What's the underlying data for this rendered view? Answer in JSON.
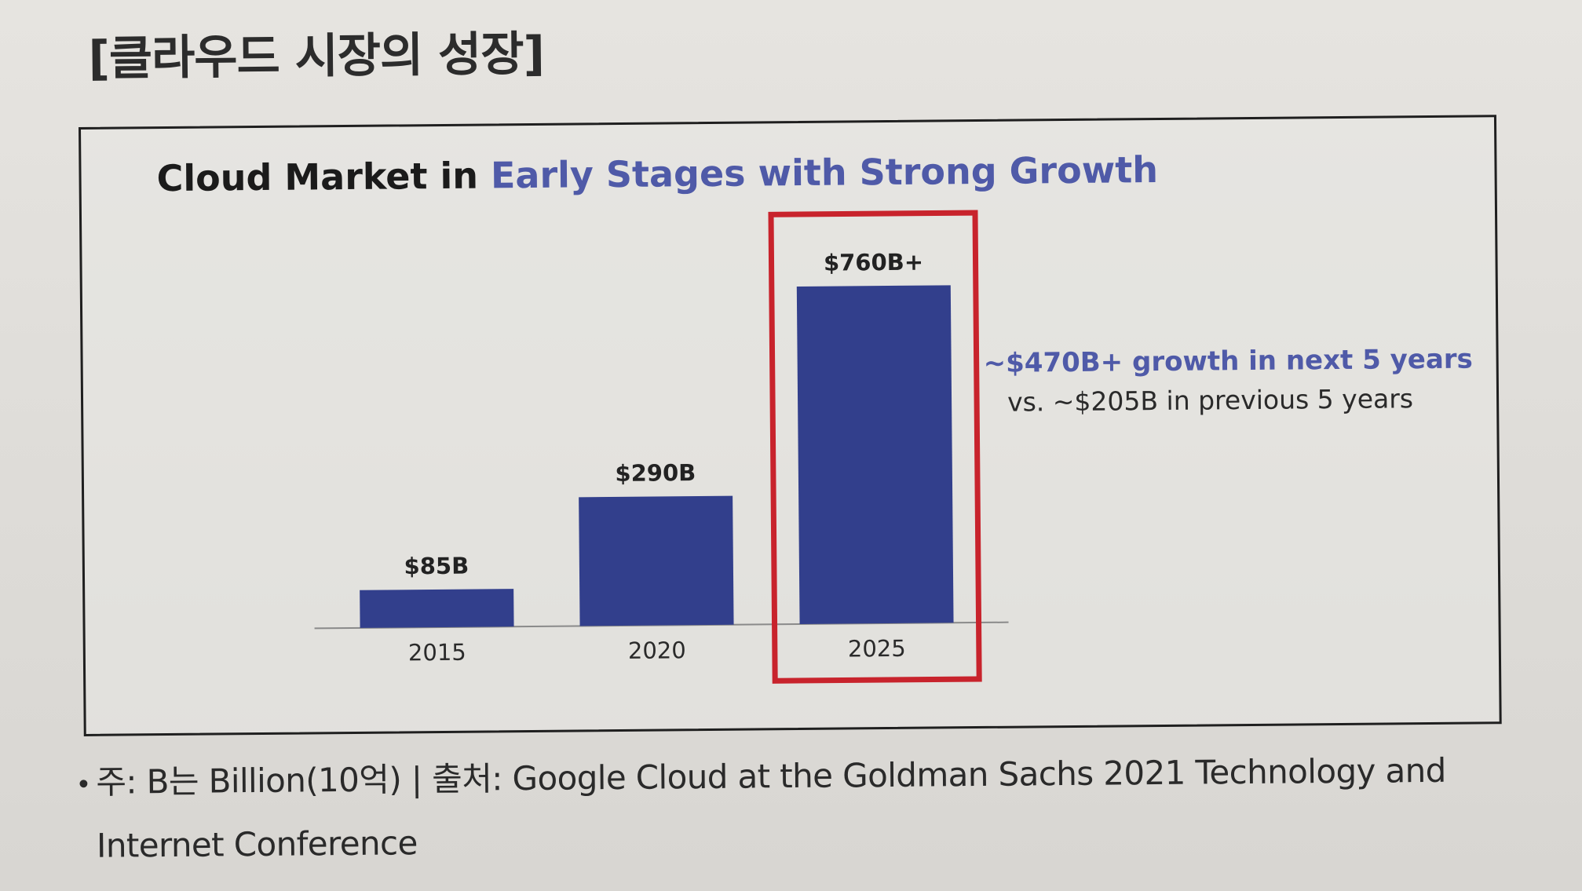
{
  "section_heading": "[클라우드 시장의 성장]",
  "chart_data": {
    "type": "bar",
    "title_part1": "Cloud Market in ",
    "title_part2": "Early Stages with Strong Growth",
    "categories": [
      "2015",
      "2020",
      "2025"
    ],
    "values": [
      85,
      290,
      760
    ],
    "data_labels": [
      "$85B",
      "$290B",
      "$760B+"
    ],
    "highlight_category": "2025",
    "unit": "B (Billion USD)",
    "ylim": [
      0,
      760
    ],
    "grid": false,
    "annotation": {
      "line1": "~$470B+ growth in next 5 years",
      "line2": "vs. ~$205B in previous 5 years"
    }
  },
  "footnote": {
    "bullet": "•",
    "line1": "주: B는 Billion(10억) | 출처: Google Cloud at the Goldman Sachs 2021 Technology and",
    "line2": "Internet Conference"
  },
  "colors": {
    "bar": "#323f8c",
    "accent": "#4f5aa8",
    "highlight_box": "#c8232c",
    "baseline": "#8a8a8a"
  }
}
